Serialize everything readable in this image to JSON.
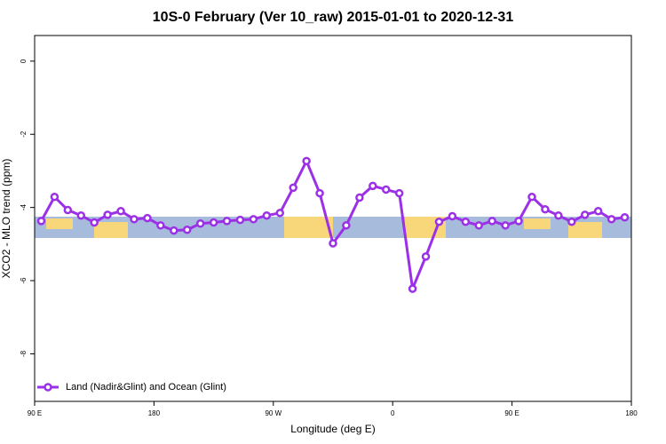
{
  "chart_data": {
    "type": "line",
    "title": "10S-0 February (Ver 10_raw)   2015-01-01 to 2020-12-31",
    "x_label": "Longitude (deg E)",
    "y_label": "XCO2 - MLO trend (ppm)",
    "x": [
      95,
      105,
      115,
      125,
      135,
      145,
      155,
      165,
      175,
      185,
      195,
      205,
      215,
      225,
      235,
      245,
      255,
      265,
      275,
      285,
      295,
      305,
      315,
      325,
      335,
      345,
      355,
      365,
      375,
      385,
      395,
      405,
      415,
      425,
      435,
      445,
      455,
      465,
      475,
      485,
      495,
      505,
      515,
      525,
      535
    ],
    "series": [
      {
        "name": "Land (Nadir&Glint) and Ocean (Glint)",
        "color": "#9b30e6",
        "values": [
          -4.37,
          -3.71,
          -4.07,
          -4.22,
          -4.41,
          -4.2,
          -4.1,
          -4.32,
          -4.29,
          -4.49,
          -4.63,
          -4.61,
          -4.44,
          -4.41,
          -4.37,
          -4.34,
          -4.32,
          -4.22,
          -4.15,
          -3.46,
          -2.73,
          -3.61,
          -4.98,
          -4.49,
          -3.73,
          -3.41,
          -3.51,
          -3.61,
          -6.22,
          -5.34,
          -4.39,
          -4.24,
          -4.39,
          -4.49,
          -4.37,
          -4.49,
          -4.37,
          -3.71,
          -4.05,
          -4.22,
          -4.39,
          -4.2,
          -4.1,
          -4.32,
          -4.27
        ]
      }
    ],
    "xlim": [
      90,
      540
    ],
    "xticks": [
      {
        "value": 90,
        "label": "90 E"
      },
      {
        "value": 180,
        "label": "180"
      },
      {
        "value": 270,
        "label": "90 W"
      },
      {
        "value": 360,
        "label": "0"
      },
      {
        "value": 450,
        "label": "90 E"
      },
      {
        "value": 540,
        "label": "180"
      }
    ],
    "ylim": [
      -9.3,
      0.7
    ],
    "yticks": [
      0,
      -2,
      -4,
      -6,
      -8
    ],
    "legend": "bottom-left"
  }
}
